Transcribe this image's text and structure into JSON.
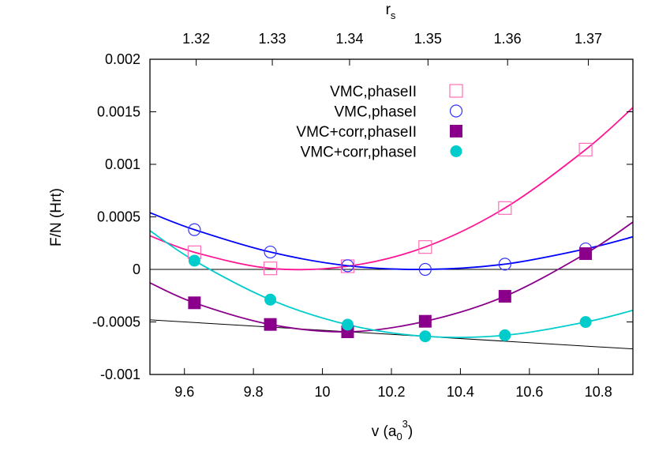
{
  "chart_data": {
    "type": "scatter",
    "xlabel": "v (a",
    "xlabel_sub": "0",
    "xlabel_sup": "3",
    "xlabel_close": ")",
    "ylabel": "F/N (Hrt)",
    "top_axis_label": "r",
    "top_axis_label_sub": "s",
    "xlim": [
      9.5,
      10.9
    ],
    "ylim": [
      -0.001,
      0.002
    ],
    "xticks": [
      9.6,
      9.8,
      10,
      10.2,
      10.4,
      10.6,
      10.8
    ],
    "xtick_labels": [
      "9.6",
      "9.8",
      "10",
      "10.2",
      "10.4",
      "10.6",
      "10.8"
    ],
    "yticks": [
      -0.001,
      -0.0005,
      0,
      0.0005,
      0.001,
      0.0015,
      0.002
    ],
    "ytick_labels": [
      "-0.001",
      "-0.0005",
      "0",
      "0.0005",
      "0.001",
      "0.0015",
      "0.002"
    ],
    "top_ticks": [
      1.32,
      1.33,
      1.34,
      1.35,
      1.36,
      1.37
    ],
    "top_tick_labels": [
      "1.32",
      "1.33",
      "1.34",
      "1.35",
      "1.36",
      "1.37"
    ],
    "grid": false,
    "legend_position": "top-center",
    "zero_line": true,
    "series": [
      {
        "name": "VMC,phaseII",
        "marker": "open-square",
        "marker_color": "#ff6eb4",
        "line_color": "#ff1493",
        "x": [
          9.629,
          9.849,
          10.073,
          10.298,
          10.529,
          10.763
        ],
        "y": [
          0.000163,
          1e-05,
          3e-05,
          0.000213,
          0.000584,
          0.00114
        ],
        "fit_y_at_xlim": [
          0.00032,
          0.00154
        ]
      },
      {
        "name": "VMC,phaseI",
        "marker": "open-circle",
        "marker_color": "#3333ff",
        "line_color": "#0000ff",
        "x": [
          9.629,
          9.849,
          10.073,
          10.298,
          10.529,
          10.763
        ],
        "y": [
          0.000378,
          0.000165,
          3.5e-05,
          0.0,
          5e-05,
          0.000195
        ],
        "fit_y_at_xlim": [
          0.00054,
          0.00031
        ]
      },
      {
        "name": "VMC+corr,phaseII",
        "marker": "filled-square",
        "marker_color": "#8b008b",
        "line_color": "#8b008b",
        "x": [
          9.629,
          9.849,
          10.073,
          10.298,
          10.529,
          10.763
        ],
        "y": [
          -0.000318,
          -0.000524,
          -0.000594,
          -0.000494,
          -0.000256,
          0.00015
        ],
        "fit_y_at_xlim": [
          -0.000128,
          0.00045
        ]
      },
      {
        "name": "VMC+corr,phaseI",
        "marker": "filled-circle",
        "marker_color": "#00cccc",
        "line_color": "#00cccc",
        "x": [
          9.629,
          9.849,
          10.073,
          10.298,
          10.529,
          10.763
        ],
        "y": [
          8.3e-05,
          -0.000288,
          -0.000526,
          -0.000637,
          -0.000627,
          -0.000501
        ],
        "fit_y_at_xlim": [
          0.000368,
          -0.00039
        ]
      }
    ],
    "tangent_line": {
      "color": "#000000",
      "y_at_xlim": [
        -0.00048,
        -0.000757
      ]
    }
  }
}
